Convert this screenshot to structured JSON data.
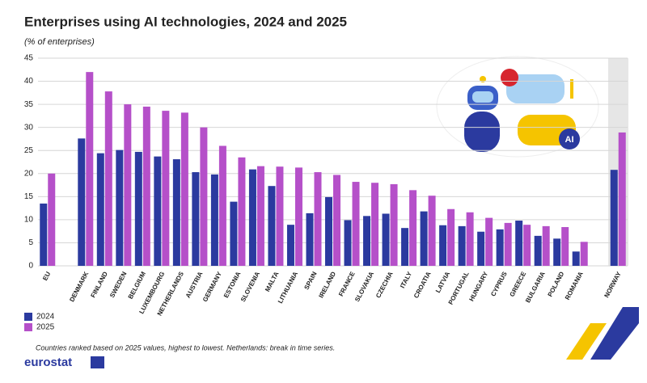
{
  "chart_data": {
    "type": "bar",
    "title": "Enterprises using AI technologies, 2024 and 2025",
    "subtitle": "(% of enterprises)",
    "categories": [
      "EU",
      null,
      "DENMARK",
      "FINLAND",
      "SWEDEN",
      "BELGIUM",
      "LUXEMBOURG",
      "NETHERLANDS",
      "AUSTRIA",
      "GERMANY",
      "ESTONIA",
      "SLOVENIA",
      "MALTA",
      "LITHUANIA",
      "SPAIN",
      "IRELAND",
      "FRANCE",
      "SLOVAKIA",
      "CZECHIA",
      "ITALY",
      "CROATIA",
      "LATVIA",
      "PORTUGAL",
      "HUNGARY",
      "CYPRUS",
      "GREECE",
      "BULGARIA",
      "POLAND",
      "ROMANIA",
      null,
      "NORWAY"
    ],
    "series": [
      {
        "name": "2024",
        "color": "#2b3a9f",
        "values": [
          13.5,
          null,
          27.6,
          24.4,
          25.1,
          24.7,
          23.7,
          23.1,
          20.3,
          19.8,
          13.9,
          20.9,
          17.3,
          8.9,
          11.4,
          14.9,
          9.9,
          10.8,
          11.3,
          8.2,
          11.8,
          8.8,
          8.6,
          7.4,
          7.9,
          9.8,
          6.5,
          5.9,
          3.1,
          null,
          20.8
        ]
      },
      {
        "name": "2025",
        "color": "#b550c9",
        "values": [
          20.0,
          null,
          42.0,
          37.8,
          35.0,
          34.5,
          33.6,
          33.2,
          30.0,
          26.0,
          23.5,
          21.6,
          21.5,
          21.3,
          20.3,
          19.7,
          18.2,
          18.0,
          17.7,
          16.4,
          15.2,
          12.3,
          11.6,
          10.4,
          9.3,
          8.9,
          8.6,
          8.4,
          5.2,
          null,
          28.9
        ]
      }
    ],
    "ylim": [
      0,
      45
    ],
    "yticks": [
      0,
      5,
      10,
      15,
      20,
      25,
      30,
      35,
      40,
      45
    ],
    "grid": true,
    "note": "Countries ranked based on 2025 values, highest to lowest. Netherlands: break in time series.",
    "logo": "eurostat",
    "illustration_text": "AI"
  }
}
